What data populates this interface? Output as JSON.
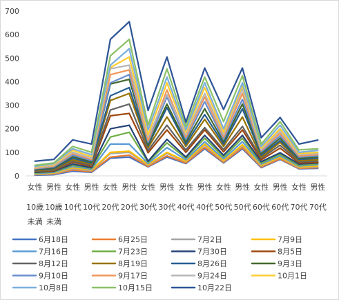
{
  "chart_data": {
    "type": "line",
    "title": "",
    "xlabel": "",
    "ylabel": "",
    "ylim": [
      0,
      700
    ],
    "yticks": [
      0,
      100,
      200,
      300,
      400,
      500,
      600,
      700
    ],
    "grid": false,
    "legend_position": "bottom",
    "categories": [
      [
        "女性",
        "10歳",
        "未満"
      ],
      [
        "男性",
        "10歳",
        "未満"
      ],
      [
        "女性",
        "10代"
      ],
      [
        "男性",
        "10代"
      ],
      [
        "女性",
        "20代"
      ],
      [
        "男性",
        "20代"
      ],
      [
        "女性",
        "30代"
      ],
      [
        "男性",
        "30代"
      ],
      [
        "女性",
        "40代"
      ],
      [
        "男性",
        "40代"
      ],
      [
        "女性",
        "50代"
      ],
      [
        "男性",
        "50代"
      ],
      [
        "女性",
        "60代"
      ],
      [
        "男性",
        "60代"
      ],
      [
        "女性",
        "70代"
      ],
      [
        "男性",
        "70代"
      ]
    ],
    "series": [
      {
        "name": "6月18日",
        "color": "#4472C4",
        "values": [
          3,
          5,
          20,
          15,
          75,
          80,
          38,
          80,
          52,
          115,
          55,
          115,
          35,
          70,
          30,
          32
        ]
      },
      {
        "name": "6月25日",
        "color": "#ED7D31",
        "values": [
          5,
          8,
          25,
          18,
          80,
          88,
          40,
          85,
          55,
          120,
          58,
          120,
          38,
          72,
          32,
          35
        ]
      },
      {
        "name": "7月2日",
        "color": "#A5A5A5",
        "values": [
          6,
          10,
          30,
          22,
          95,
          100,
          45,
          95,
          60,
          130,
          62,
          128,
          42,
          78,
          35,
          38
        ]
      },
      {
        "name": "7月9日",
        "color": "#FFC000",
        "values": [
          8,
          12,
          35,
          25,
          100,
          105,
          48,
          100,
          62,
          135,
          65,
          132,
          45,
          80,
          38,
          42
        ]
      },
      {
        "name": "7月16日",
        "color": "#5B9BD5",
        "values": [
          10,
          15,
          40,
          28,
          135,
          135,
          52,
          120,
          68,
          145,
          72,
          145,
          50,
          85,
          42,
          48
        ]
      },
      {
        "name": "7月23日",
        "color": "#70AD47",
        "values": [
          12,
          18,
          45,
          32,
          165,
          185,
          58,
          140,
          75,
          160,
          80,
          160,
          55,
          92,
          45,
          52
        ]
      },
      {
        "name": "7月30日",
        "color": "#264478",
        "values": [
          15,
          20,
          50,
          35,
          200,
          215,
          62,
          155,
          80,
          172,
          88,
          172,
          60,
          98,
          50,
          55
        ]
      },
      {
        "name": "8月5日",
        "color": "#9E480E",
        "values": [
          18,
          22,
          58,
          40,
          255,
          265,
          98,
          195,
          100,
          195,
          102,
          195,
          68,
          118,
          55,
          58
        ]
      },
      {
        "name": "8月12日",
        "color": "#636363",
        "values": [
          20,
          25,
          62,
          45,
          280,
          305,
          108,
          215,
          110,
          205,
          112,
          210,
          75,
          130,
          60,
          62
        ]
      },
      {
        "name": "8月19日",
        "color": "#997300",
        "values": [
          22,
          28,
          68,
          50,
          320,
          350,
          120,
          250,
          125,
          240,
          125,
          250,
          80,
          142,
          65,
          68
        ]
      },
      {
        "name": "8月26日",
        "color": "#255E91",
        "values": [
          25,
          32,
          75,
          55,
          340,
          375,
          128,
          290,
          135,
          260,
          135,
          285,
          88,
          150,
          70,
          75
        ]
      },
      {
        "name": "9月3日",
        "color": "#43682B",
        "values": [
          28,
          35,
          82,
          60,
          390,
          410,
          135,
          305,
          145,
          285,
          145,
          305,
          95,
          160,
          75,
          80
        ]
      },
      {
        "name": "9月10日",
        "color": "#698ED0",
        "values": [
          30,
          38,
          88,
          65,
          395,
          430,
          142,
          335,
          155,
          315,
          155,
          325,
          102,
          170,
          80,
          85
        ]
      },
      {
        "name": "9月17日",
        "color": "#F1975A",
        "values": [
          32,
          42,
          95,
          70,
          430,
          450,
          150,
          365,
          165,
          335,
          165,
          350,
          108,
          180,
          85,
          90
        ]
      },
      {
        "name": "9月24日",
        "color": "#B7B7B7",
        "values": [
          35,
          45,
          100,
          75,
          455,
          470,
          165,
          345,
          175,
          350,
          175,
          370,
          112,
          190,
          90,
          95
        ]
      },
      {
        "name": "10月1日",
        "color": "#FFCD33",
        "values": [
          38,
          48,
          108,
          82,
          460,
          505,
          175,
          395,
          185,
          375,
          185,
          385,
          118,
          200,
          95,
          100
        ]
      },
      {
        "name": "10月8日",
        "color": "#7CAFDD",
        "values": [
          40,
          52,
          115,
          90,
          470,
          540,
          195,
          420,
          195,
          395,
          200,
          395,
          125,
          215,
          100,
          108
        ]
      },
      {
        "name": "10月15日",
        "color": "#8CC168",
        "values": [
          45,
          55,
          125,
          100,
          510,
          580,
          215,
          455,
          210,
          420,
          230,
          425,
          135,
          230,
          110,
          115
        ]
      },
      {
        "name": "10月22日",
        "color": "#2F5597",
        "values": [
          62,
          70,
          153,
          135,
          580,
          655,
          278,
          505,
          228,
          458,
          282,
          458,
          162,
          248,
          135,
          152
        ]
      }
    ]
  }
}
